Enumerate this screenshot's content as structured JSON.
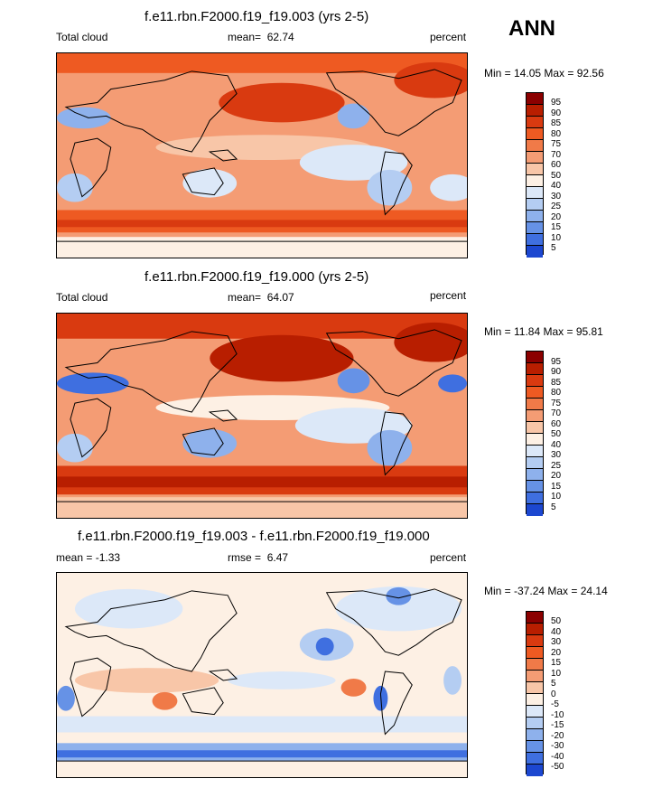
{
  "season": "ANN",
  "units": "percent",
  "panels": [
    {
      "title": "f.e11.rbn.F2000.f19_f19.003 (yrs 2-5)",
      "left_label": "Total cloud",
      "stat_label": "mean=",
      "stat_value": "62.74",
      "units": "percent",
      "minmax": "Min =  14.05 Max =  92.56",
      "levels": [
        "95",
        "90",
        "85",
        "80",
        "75",
        "70",
        "60",
        "50",
        "40",
        "30",
        "25",
        "20",
        "15",
        "10",
        "5"
      ],
      "colors": [
        "#8b0000",
        "#b81e00",
        "#d93a10",
        "#ee5a22",
        "#f07a48",
        "#f49c74",
        "#f8c6a8",
        "#fdf0e4",
        "#dce8f8",
        "#b4cdf2",
        "#8eb1ec",
        "#6692e6",
        "#3f6fe0",
        "#1c47d0",
        "#0a229c",
        "#000080"
      ]
    },
    {
      "title": "f.e11.rbn.F2000.f19_f19.000 (yrs 2-5)",
      "left_label": "Total cloud",
      "stat_label": "mean=",
      "stat_value": "64.07",
      "units": "percent",
      "minmax": "Min =  11.84 Max =  95.81",
      "levels": [
        "95",
        "90",
        "85",
        "80",
        "75",
        "70",
        "60",
        "50",
        "40",
        "30",
        "25",
        "20",
        "15",
        "10",
        "5"
      ],
      "colors": [
        "#8b0000",
        "#b81e00",
        "#d93a10",
        "#ee5a22",
        "#f07a48",
        "#f49c74",
        "#f8c6a8",
        "#fdf0e4",
        "#dce8f8",
        "#b4cdf2",
        "#8eb1ec",
        "#6692e6",
        "#3f6fe0",
        "#1c47d0",
        "#0a229c",
        "#000080"
      ]
    },
    {
      "title": "f.e11.rbn.F2000.f19_f19.003 - f.e11.rbn.F2000.f19_f19.000",
      "left_label": "mean =  -1.33",
      "stat_label": "rmse =",
      "stat_value": "6.47",
      "units": "percent",
      "minmax": "Min = -37.24 Max =  24.14",
      "levels": [
        "50",
        "40",
        "30",
        "20",
        "15",
        "10",
        "5",
        "0",
        "-5",
        "-10",
        "-15",
        "-20",
        "-30",
        "-40",
        "-50"
      ],
      "colors": [
        "#8b0000",
        "#b81e00",
        "#d93a10",
        "#ee5a22",
        "#f07a48",
        "#f49c74",
        "#f8c6a8",
        "#fdf0e4",
        "#dce8f8",
        "#b4cdf2",
        "#8eb1ec",
        "#6692e6",
        "#3f6fe0",
        "#1c47d0",
        "#0a229c",
        "#000080"
      ]
    }
  ]
}
